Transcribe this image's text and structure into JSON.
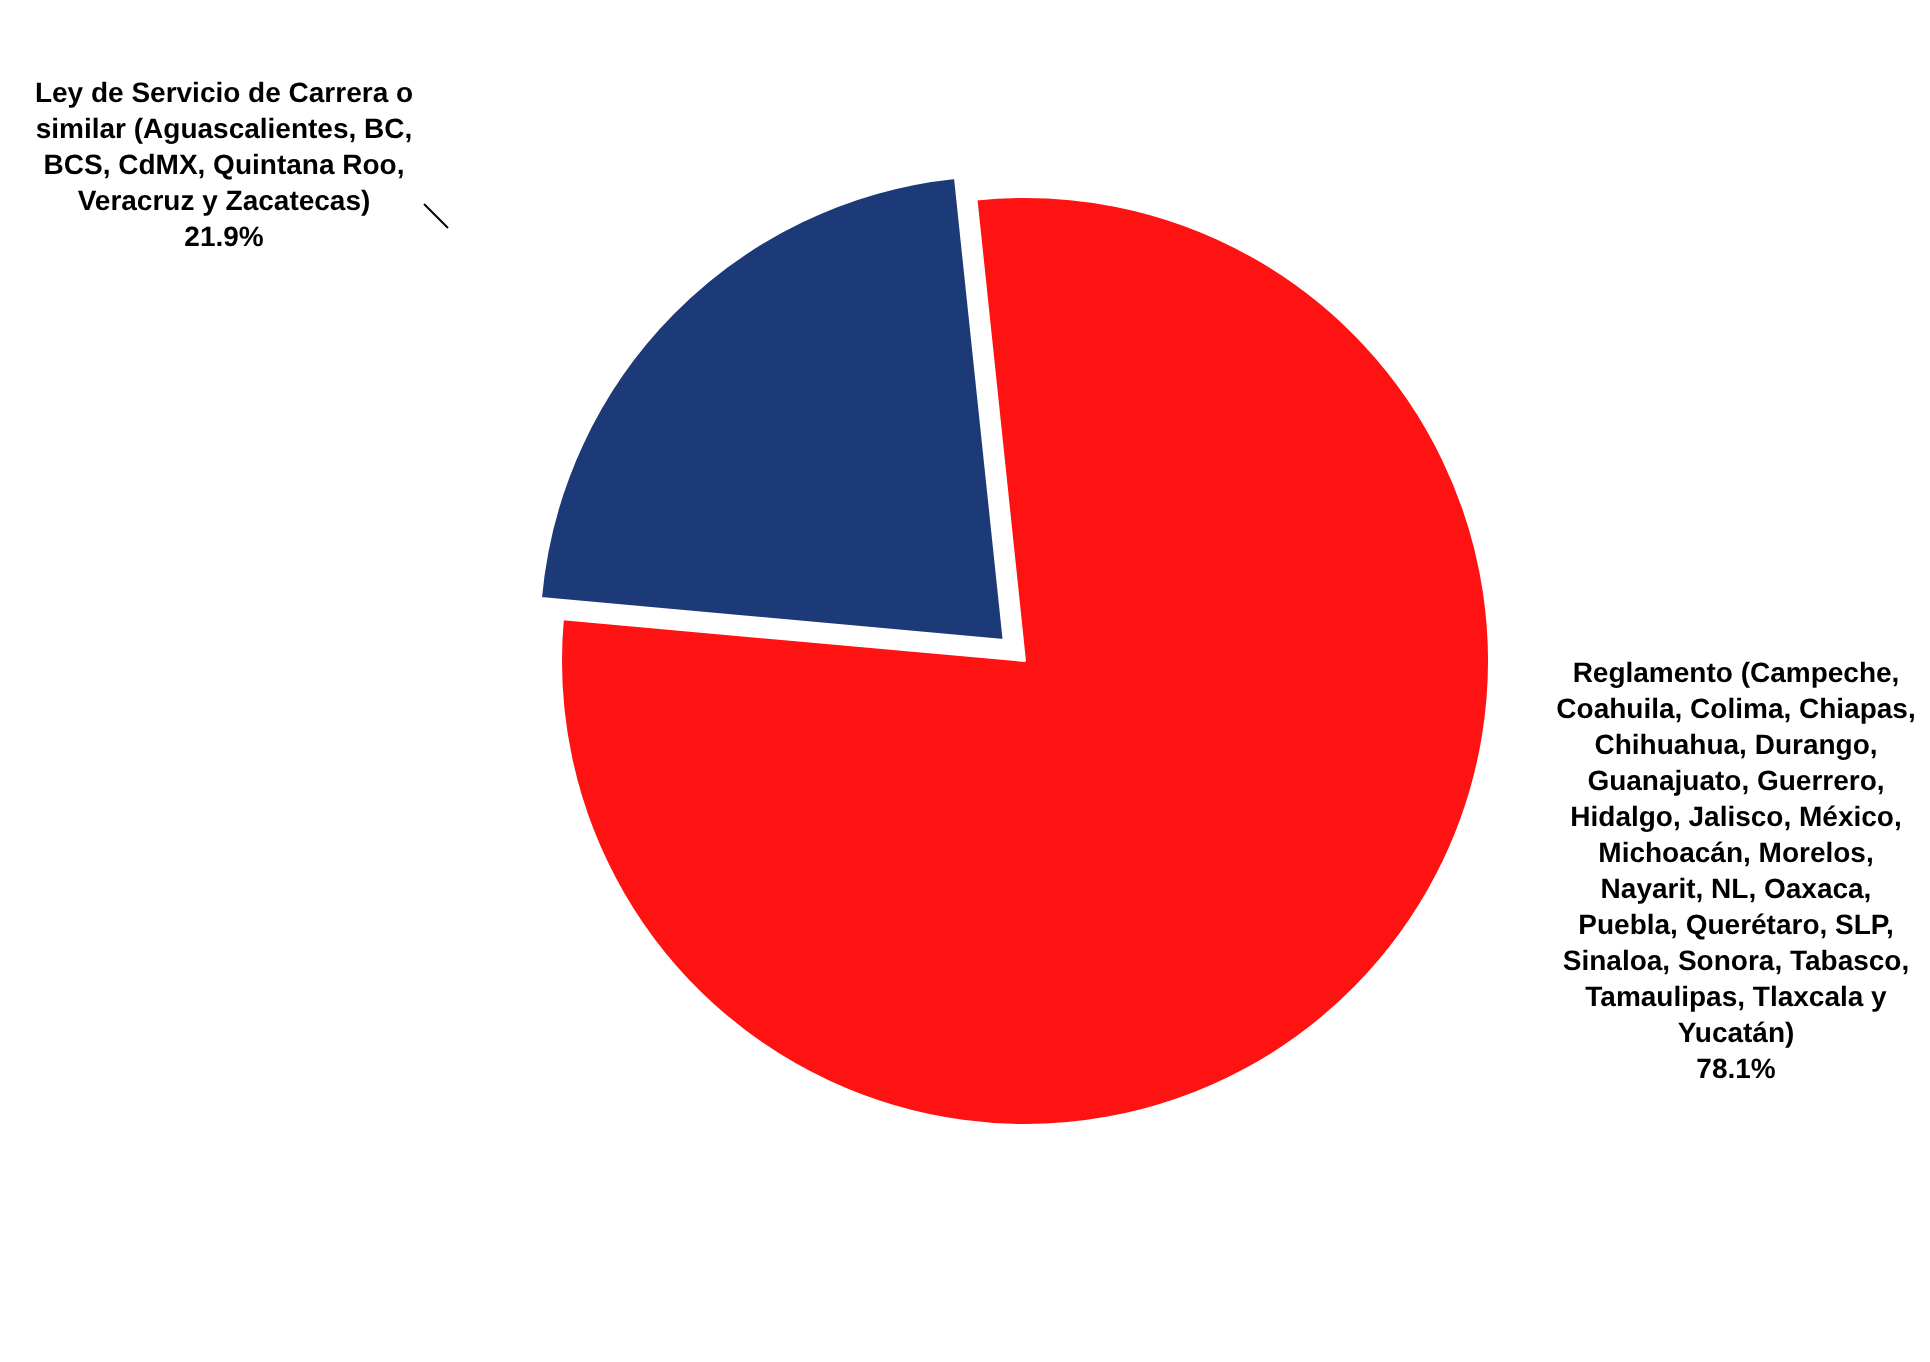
{
  "chart_data": {
    "type": "pie",
    "categories": [
      "Ley de Servicio de Carrera o similar (Aguascalientes, BC, BCS, CdMX, Quintana Roo, Veracruz y Zacatecas)",
      "Reglamento (Campeche, Coahuila, Colima, Chiapas, Chihuahua, Durango, Guanajuato, Guerrero, Hidalgo, Jalisco, México, Michoacán, Morelos, Nayarit, NL, Oaxaca, Puebla, Querétaro, SLP, Sinaloa, Sonora, Tabasco, Tamaulipas, Tlaxcala y Yucatán)"
    ],
    "values": [
      21.9,
      78.1
    ],
    "colors": [
      "#1d3a78",
      "#ff1212"
    ],
    "value_labels": [
      "21.9%",
      "78.1%"
    ],
    "legend": false
  }
}
